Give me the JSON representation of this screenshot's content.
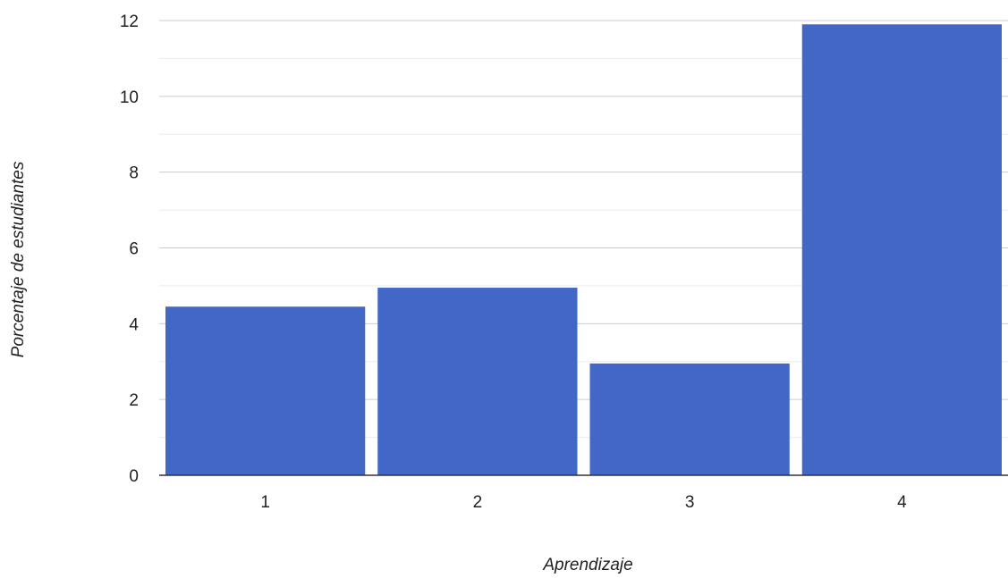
{
  "chart_data": {
    "type": "bar",
    "categories": [
      "1",
      "2",
      "3",
      "4"
    ],
    "values": [
      4.45,
      4.95,
      2.95,
      11.9
    ],
    "xlabel": "Aprendizaje",
    "ylabel": "Porcentaje de estudiantes",
    "ylim": [
      0,
      12
    ],
    "yticks": [
      "0",
      "2",
      "4",
      "6",
      "8",
      "10",
      "12"
    ],
    "grid": true,
    "legend": "none",
    "bar_color": "#4267c6"
  }
}
